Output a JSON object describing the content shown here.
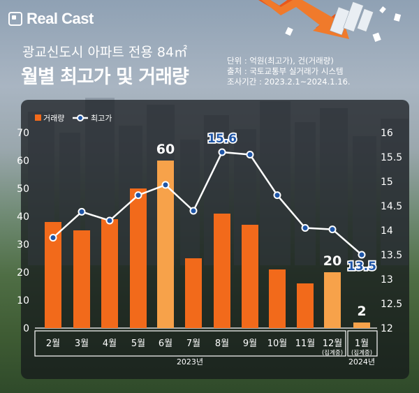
{
  "brand": {
    "logo_text": "Real Cast"
  },
  "header": {
    "subtitle": "광교신도시 아파트 전용 84㎡",
    "title": "월별 최고가 및 거래량",
    "meta_unit": "단위 : 억원(최고가), 건(거래량)",
    "meta_source": "출처 : 국토교통부 실거래가 시스템",
    "meta_period": "조사기간 : 2023.2.1~2024.1.16."
  },
  "colors": {
    "bar": "#f26a1b",
    "bar_highlight": "#f7a24a",
    "line": "#ffffff",
    "marker": "#1f56a8",
    "label_blue": "#1f56a8"
  },
  "chart_data": {
    "type": "bar",
    "categories": [
      "2월",
      "3월",
      "4월",
      "5월",
      "6월",
      "7월",
      "8월",
      "9월",
      "10월",
      "11월",
      "12월",
      "1월"
    ],
    "category_notes": [
      "",
      "",
      "",
      "",
      "",
      "",
      "",
      "",
      "",
      "",
      "(집계중)",
      "(집계중)"
    ],
    "year_labels": [
      "2023년",
      "2024년"
    ],
    "series": [
      {
        "name": "거래량",
        "type": "bar",
        "axis": "left",
        "values": [
          38,
          35,
          39,
          50,
          60,
          25,
          41,
          37,
          21,
          16,
          20,
          2
        ]
      },
      {
        "name": "최고가",
        "type": "line",
        "axis": "right",
        "values": [
          13.85,
          14.38,
          14.2,
          14.72,
          14.93,
          14.4,
          15.6,
          15.55,
          14.72,
          14.05,
          14.02,
          13.5
        ]
      }
    ],
    "highlighted_indices": [
      4,
      10,
      11
    ],
    "data_labels": [
      {
        "series": "거래량",
        "index": 4,
        "text": "60"
      },
      {
        "series": "거래량",
        "index": 10,
        "text": "20"
      },
      {
        "series": "거래량",
        "index": 11,
        "text": "2"
      },
      {
        "series": "최고가",
        "index": 6,
        "text": "15.6"
      },
      {
        "series": "최고가",
        "index": 11,
        "text": "13.5"
      }
    ],
    "y_left": {
      "ylim": [
        0,
        70
      ],
      "ticks": [
        "0",
        "10",
        "20",
        "30",
        "40",
        "50",
        "60",
        "70"
      ]
    },
    "y_right": {
      "ylim": [
        12,
        16
      ],
      "ticks": [
        "12",
        "12.5",
        "13",
        "13.5",
        "14",
        "14.5",
        "15",
        "15.5",
        "16"
      ]
    },
    "legend_position": "top-left"
  }
}
